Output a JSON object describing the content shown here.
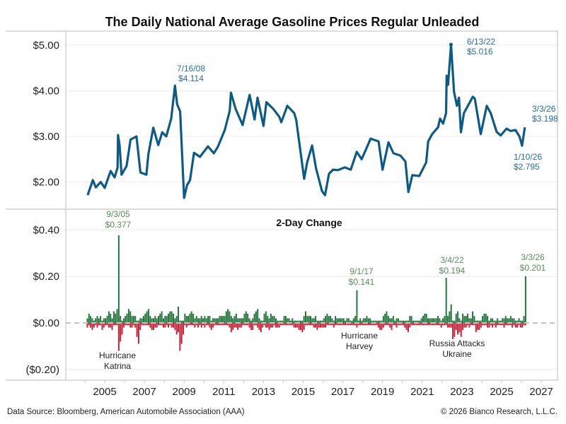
{
  "chart_data": [
    {
      "type": "line",
      "title": "The Daily National Average Gasoline Prices Regular Unleaded",
      "xlabel": "",
      "ylabel": "",
      "ylim": [
        1.5,
        5.2
      ],
      "xlim": [
        2003.2,
        2027.6
      ],
      "grid": true,
      "yticks": [
        2,
        3,
        4,
        5
      ],
      "ytick_labels": [
        "$2.00",
        "$3.00",
        "$4.00",
        "$5.00"
      ],
      "color": "#0f5a83",
      "series": [
        {
          "x": [
            2004.14,
            2004.4,
            2004.55,
            2004.8,
            2005.0,
            2005.3,
            2005.5,
            2005.65,
            2005.67,
            2005.75,
            2005.85,
            2006.1,
            2006.3,
            2006.6,
            2006.8,
            2007.1,
            2007.2,
            2007.45,
            2007.7,
            2007.9,
            2008.1,
            2008.35,
            2008.54,
            2008.65,
            2008.8,
            2009.0,
            2009.15,
            2009.3,
            2009.5,
            2009.8,
            2010.2,
            2010.5,
            2010.7,
            2011.05,
            2011.3,
            2011.36,
            2011.6,
            2011.95,
            2012.3,
            2012.55,
            2012.7,
            2013.0,
            2013.15,
            2013.5,
            2013.8,
            2013.9,
            2014.2,
            2014.55,
            2014.65,
            2015.05,
            2015.2,
            2015.45,
            2015.65,
            2015.95,
            2016.1,
            2016.3,
            2016.5,
            2016.75,
            2017.1,
            2017.4,
            2017.7,
            2017.95,
            2018.4,
            2018.8,
            2019.0,
            2019.3,
            2019.55,
            2019.9,
            2020.15,
            2020.3,
            2020.5,
            2020.85,
            2021.2,
            2021.3,
            2021.5,
            2021.8,
            2021.9,
            2022.05,
            2022.2,
            2022.23,
            2022.3,
            2022.45,
            2022.6,
            2022.75,
            2022.85,
            2022.95,
            2023.1,
            2023.3,
            2023.55,
            2023.65,
            2023.95,
            2024.25,
            2024.45,
            2024.75,
            2024.95,
            2025.25,
            2025.45,
            2025.7,
            2025.9,
            2026.03,
            2026.17
          ],
          "y": [
            1.71,
            2.04,
            1.88,
            2.0,
            1.87,
            2.24,
            2.1,
            2.32,
            3.03,
            2.81,
            2.16,
            2.35,
            2.93,
            3.0,
            2.21,
            2.16,
            2.61,
            3.19,
            2.81,
            3.09,
            3.0,
            3.39,
            4.114,
            3.7,
            3.55,
            1.65,
            1.93,
            2.04,
            2.64,
            2.55,
            2.78,
            2.63,
            2.77,
            3.14,
            3.56,
            3.96,
            3.6,
            3.25,
            3.91,
            3.37,
            3.85,
            3.23,
            3.75,
            3.6,
            3.43,
            3.31,
            3.67,
            3.51,
            3.36,
            2.07,
            2.43,
            2.8,
            2.3,
            1.8,
            1.71,
            2.18,
            2.27,
            2.26,
            2.32,
            2.27,
            2.66,
            2.5,
            2.95,
            2.89,
            2.27,
            2.87,
            2.63,
            2.58,
            2.45,
            1.78,
            2.15,
            2.13,
            2.43,
            2.89,
            3.05,
            3.2,
            3.39,
            3.28,
            3.51,
            4.33,
            4.13,
            5.016,
            3.98,
            3.67,
            3.85,
            3.09,
            3.51,
            3.67,
            3.87,
            3.83,
            3.05,
            3.67,
            3.51,
            3.1,
            3.02,
            3.17,
            3.12,
            3.14,
            3.0,
            2.795,
            3.198
          ]
        }
      ],
      "annotations": [
        {
          "date": "7/16/08",
          "value": "$4.114"
        },
        {
          "date": "6/13/22",
          "value": "$5.016"
        },
        {
          "date": "3/3/26",
          "value": "$3.198"
        },
        {
          "date": "1/10/26",
          "value": "$2.795"
        }
      ]
    },
    {
      "type": "bar",
      "title": "2-Day Change",
      "ylim": [
        -0.24,
        0.44
      ],
      "grid": true,
      "yticks": [
        -0.2,
        0,
        0.2,
        0.4
      ],
      "ytick_labels": [
        "($0.20)",
        "$0.00",
        "$0.20",
        "$0.40"
      ],
      "positive_color": "#26753f",
      "negative_color": "#c1253b",
      "monthly_bars": {
        "2004": {
          "up": [
            null,
            0.02,
            0.04,
            0.03,
            0.02,
            0.01,
            0.02,
            0.03,
            0.02,
            0.03,
            0.01,
            0.02
          ],
          "down": [
            null,
            -0.02,
            -0.01,
            -0.02,
            -0.03,
            -0.02,
            -0.01,
            -0.02,
            -0.01,
            -0.01,
            -0.03,
            -0.02
          ]
        },
        "2005": {
          "up": [
            0.02,
            0.03,
            0.05,
            0.04,
            0.02,
            0.05,
            0.04,
            0.06,
            0.377,
            0.03,
            0.01,
            0.02
          ],
          "down": [
            -0.01,
            -0.01,
            -0.02,
            -0.02,
            -0.03,
            -0.01,
            -0.01,
            -0.01,
            -0.12,
            -0.08,
            -0.05,
            -0.02
          ]
        },
        "2006": {
          "up": [
            0.03,
            0.04,
            0.06,
            0.05,
            0.03,
            0.03,
            0.03,
            0.01,
            0.01,
            0.02,
            0.02,
            0.03
          ],
          "down": [
            -0.01,
            -0.01,
            -0.01,
            -0.02,
            -0.02,
            -0.01,
            -0.02,
            -0.06,
            -0.09,
            -0.03,
            -0.01,
            -0.01
          ]
        },
        "2007": {
          "up": [
            0.04,
            0.05,
            0.06,
            0.03,
            0.02,
            0.02,
            0.03,
            0.02,
            0.03,
            0.04,
            0.05,
            0.02
          ],
          "down": [
            -0.01,
            -0.01,
            -0.01,
            -0.02,
            -0.03,
            -0.03,
            -0.02,
            -0.02,
            -0.01,
            -0.01,
            -0.01,
            -0.02
          ]
        },
        "2008": {
          "up": [
            0.03,
            0.03,
            0.04,
            0.05,
            0.05,
            0.04,
            0.02,
            0.03,
            0.07,
            0.01,
            0.01,
            0.01
          ],
          "down": [
            -0.02,
            -0.01,
            -0.02,
            -0.01,
            -0.02,
            -0.02,
            -0.03,
            -0.05,
            -0.04,
            -0.12,
            -0.09,
            -0.05
          ]
        },
        "2009": {
          "up": [
            0.04,
            0.03,
            0.03,
            0.04,
            0.05,
            0.04,
            0.02,
            0.03,
            0.02,
            0.02,
            0.03,
            0.02
          ],
          "down": [
            -0.01,
            -0.02,
            -0.01,
            -0.01,
            -0.01,
            -0.01,
            -0.02,
            -0.01,
            -0.02,
            -0.01,
            -0.02,
            -0.01
          ]
        },
        "2010": {
          "up": [
            0.03,
            0.02,
            0.03,
            0.03,
            0.01,
            0.02,
            0.02,
            0.02,
            0.02,
            0.03,
            0.03,
            0.03
          ],
          "down": [
            -0.02,
            -0.01,
            -0.01,
            -0.02,
            -0.03,
            -0.02,
            -0.01,
            -0.01,
            -0.01,
            -0.01,
            -0.01,
            -0.01
          ]
        },
        "2011": {
          "up": [
            0.03,
            0.05,
            0.06,
            0.05,
            0.03,
            0.02,
            0.03,
            0.04,
            0.02,
            0.02,
            0.02,
            0.02
          ],
          "down": [
            -0.01,
            -0.01,
            -0.01,
            -0.02,
            -0.04,
            -0.03,
            -0.02,
            -0.02,
            -0.03,
            -0.02,
            -0.02,
            -0.01
          ]
        },
        "2012": {
          "up": [
            0.04,
            0.05,
            0.04,
            0.02,
            0.01,
            0.02,
            0.04,
            0.05,
            0.06,
            0.02,
            0.01,
            0.01
          ],
          "down": [
            -0.01,
            -0.01,
            -0.01,
            -0.02,
            -0.03,
            -0.03,
            -0.01,
            -0.01,
            -0.02,
            -0.03,
            -0.04,
            -0.02
          ]
        },
        "2013": {
          "up": [
            0.04,
            0.05,
            0.03,
            0.02,
            0.04,
            0.03,
            0.03,
            0.02,
            0.01,
            0.01,
            0.01,
            0.01
          ],
          "down": [
            -0.01,
            -0.02,
            -0.02,
            -0.03,
            -0.02,
            -0.02,
            -0.01,
            -0.02,
            -0.02,
            -0.02,
            -0.01,
            -0.01
          ]
        },
        "2014": {
          "up": [
            0.03,
            0.03,
            0.02,
            0.02,
            0.01,
            0.02,
            0.01,
            0.01,
            0.01,
            0.01,
            0.01,
            0.01
          ],
          "down": [
            -0.01,
            -0.01,
            -0.01,
            -0.01,
            -0.01,
            -0.01,
            -0.02,
            -0.02,
            -0.02,
            -0.03,
            -0.03,
            -0.04
          ]
        },
        "2015": {
          "up": [
            0.03,
            0.05,
            0.03,
            0.03,
            0.03,
            0.02,
            0.02,
            0.03,
            0.01,
            0.01,
            0.01,
            0.01
          ],
          "down": [
            -0.03,
            -0.01,
            -0.01,
            -0.01,
            -0.01,
            -0.01,
            -0.02,
            -0.02,
            -0.03,
            -0.02,
            -0.02,
            -0.02
          ]
        },
        "2016": {
          "up": [
            0.02,
            0.03,
            0.04,
            0.03,
            0.03,
            0.02,
            0.01,
            0.03,
            0.02,
            0.02,
            0.02,
            0.02
          ],
          "down": [
            -0.02,
            -0.02,
            -0.01,
            -0.01,
            -0.01,
            -0.01,
            -0.02,
            -0.01,
            -0.01,
            -0.01,
            -0.01,
            -0.01
          ]
        },
        "2017": {
          "up": [
            0.02,
            0.01,
            0.02,
            0.02,
            0.01,
            0.01,
            0.02,
            0.03,
            0.141,
            0.01,
            0.02,
            0.01
          ],
          "down": [
            -0.01,
            -0.01,
            -0.01,
            -0.01,
            -0.01,
            -0.01,
            -0.01,
            -0.01,
            -0.02,
            -0.01,
            -0.01,
            -0.01
          ]
        },
        "2018": {
          "up": [
            0.02,
            0.02,
            0.03,
            0.02,
            0.02,
            0.01,
            0.01,
            0.01,
            0.01,
            0.01,
            0.01,
            0.01
          ],
          "down": [
            -0.01,
            -0.01,
            -0.01,
            -0.01,
            -0.01,
            -0.01,
            -0.01,
            -0.01,
            -0.01,
            -0.02,
            -0.03,
            -0.03
          ]
        },
        "2019": {
          "up": [
            0.03,
            0.04,
            0.05,
            0.03,
            0.02,
            0.02,
            0.03,
            0.01,
            0.02,
            0.02,
            0.01,
            0.01
          ],
          "down": [
            -0.02,
            -0.01,
            -0.01,
            -0.01,
            -0.02,
            -0.03,
            -0.01,
            -0.01,
            -0.02,
            -0.01,
            -0.01,
            -0.01
          ]
        },
        "2020": {
          "up": [
            0.01,
            0.01,
            0.01,
            0.01,
            0.03,
            0.03,
            0.01,
            0.01,
            0.01,
            0.01,
            0.01,
            0.02
          ],
          "down": [
            -0.01,
            -0.02,
            -0.03,
            -0.04,
            -0.02,
            -0.01,
            -0.01,
            -0.01,
            -0.01,
            -0.01,
            -0.01,
            -0.01
          ]
        },
        "2021": {
          "up": [
            0.03,
            0.04,
            0.04,
            0.02,
            0.02,
            0.02,
            0.02,
            0.02,
            0.02,
            0.03,
            0.02,
            0.01
          ],
          "down": [
            -0.01,
            -0.01,
            -0.01,
            -0.01,
            -0.01,
            -0.01,
            -0.01,
            -0.01,
            -0.01,
            -0.01,
            -0.01,
            -0.02
          ]
        },
        "2022": {
          "up": [
            0.02,
            0.03,
            0.194,
            0.03,
            0.05,
            0.08,
            0.01,
            0.01,
            0.04,
            0.05,
            0.02,
            0.01
          ],
          "down": [
            -0.01,
            -0.01,
            -0.01,
            -0.02,
            -0.02,
            -0.02,
            -0.07,
            -0.06,
            -0.03,
            -0.05,
            -0.04,
            -0.06
          ]
        },
        "2023": {
          "up": [
            0.04,
            0.03,
            0.03,
            0.04,
            0.02,
            0.02,
            0.05,
            0.03,
            0.01,
            0.01,
            0.01,
            0.01
          ],
          "down": [
            -0.03,
            -0.02,
            -0.02,
            -0.01,
            -0.02,
            -0.01,
            -0.01,
            -0.01,
            -0.04,
            -0.03,
            -0.03,
            -0.02
          ]
        },
        "2024": {
          "up": [
            0.03,
            0.04,
            0.04,
            0.03,
            0.01,
            0.02,
            0.02,
            0.01,
            0.01,
            0.02,
            0.01,
            0.01
          ],
          "down": [
            -0.01,
            -0.01,
            -0.01,
            -0.02,
            -0.02,
            -0.01,
            -0.02,
            -0.01,
            -0.02,
            -0.01,
            -0.01,
            -0.01
          ]
        },
        "2025": {
          "up": [
            0.02,
            0.02,
            0.03,
            0.02,
            0.02,
            0.03,
            0.02,
            0.02,
            0.01,
            0.01,
            0.02,
            0.01
          ],
          "down": [
            -0.01,
            -0.02,
            -0.01,
            -0.01,
            -0.01,
            -0.01,
            -0.02,
            -0.01,
            -0.02,
            -0.02,
            -0.01,
            -0.02
          ]
        },
        "2026": {
          "up": [
            0.01,
            0.03,
            0.201
          ],
          "down": [
            -0.02,
            -0.01,
            -0.01
          ]
        }
      },
      "annotations": [
        {
          "date": "9/3/05",
          "value": "$0.377",
          "event": [
            "Hurricane",
            "Katrina"
          ]
        },
        {
          "date": "9/1/17",
          "value": "$0.141",
          "event": [
            "Hurricane",
            "Harvey"
          ]
        },
        {
          "date": "3/4/22",
          "value": "$0.194",
          "event": [
            "Russia Attacks",
            "Ukraine"
          ]
        },
        {
          "date": "3/3/26",
          "value": "$0.201",
          "event": []
        }
      ]
    }
  ],
  "x_axis": {
    "ticks": [
      2005,
      2007,
      2009,
      2011,
      2013,
      2015,
      2017,
      2019,
      2021,
      2023,
      2025,
      2027
    ],
    "tick_labels": [
      "2005",
      "2007",
      "2009",
      "2011",
      "2013",
      "2015",
      "2017",
      "2019",
      "2021",
      "2023",
      "2025",
      "2027"
    ]
  },
  "footer": {
    "source": "Data Source: Bloomberg, American Automobile Association (AAA)",
    "copyright": "© 2026 Bianco Research, L.L.C."
  }
}
